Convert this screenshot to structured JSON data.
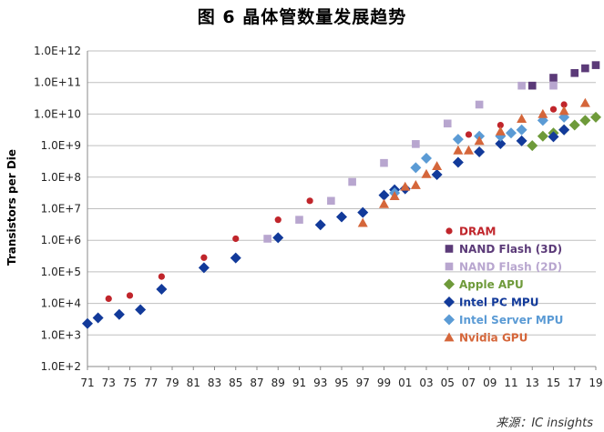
{
  "title": "图 6 晶体管数量发展趋势",
  "source": "来源：IC insights",
  "chart_data": {
    "type": "scatter",
    "ylabel": "Transistors per Die",
    "xlabel": "",
    "y_scale": "log",
    "y_ticks": [
      "1.0E+2",
      "1.0E+3",
      "1.0E+4",
      "1.0E+5",
      "1.0E+6",
      "1.0E+7",
      "1.0E+8",
      "1.0E+9",
      "1.0E+10",
      "1.0E+11",
      "1.0E+12"
    ],
    "x_ticks": [
      "71",
      "73",
      "75",
      "77",
      "79",
      "81",
      "83",
      "85",
      "87",
      "89",
      "91",
      "93",
      "95",
      "97",
      "99",
      "01",
      "03",
      "05",
      "07",
      "09",
      "11",
      "13",
      "15",
      "17",
      "19"
    ],
    "xlim": [
      1971,
      2019
    ],
    "ylim_exp": [
      2,
      12
    ],
    "grid": "horizontal",
    "legend_position": "bottom-right",
    "series": [
      {
        "name": "DRAM",
        "marker": "circle",
        "color": "#c0252b",
        "points": [
          [
            1973,
            4.15
          ],
          [
            1975,
            4.25
          ],
          [
            1978,
            4.85
          ],
          [
            1982,
            5.45
          ],
          [
            1985,
            6.05
          ],
          [
            1989,
            6.65
          ],
          [
            1992,
            7.25
          ],
          [
            1996,
            7.85
          ],
          [
            1999,
            8.45
          ],
          [
            2002,
            9.05
          ],
          [
            2007,
            9.35
          ],
          [
            2010,
            9.65
          ],
          [
            2014,
            9.95
          ],
          [
            2015,
            10.15
          ],
          [
            2016,
            10.3
          ]
        ]
      },
      {
        "name": "NAND Flash (3D)",
        "marker": "square",
        "color": "#5b3a78",
        "points": [
          [
            2013,
            10.9
          ],
          [
            2015,
            11.15
          ],
          [
            2017,
            11.3
          ],
          [
            2018,
            11.45
          ],
          [
            2019,
            11.55
          ]
        ]
      },
      {
        "name": "NAND Flash (2D)",
        "marker": "square",
        "color": "#b8a6cf",
        "points": [
          [
            1988,
            6.05
          ],
          [
            1991,
            6.65
          ],
          [
            1994,
            7.25
          ],
          [
            1996,
            7.85
          ],
          [
            1999,
            8.45
          ],
          [
            2002,
            9.05
          ],
          [
            2005,
            9.7
          ],
          [
            2008,
            10.3
          ],
          [
            2012,
            10.9
          ],
          [
            2015,
            10.9
          ]
        ]
      },
      {
        "name": "Apple APU",
        "marker": "diamond",
        "color": "#6e9a3a",
        "points": [
          [
            2013,
            9.0
          ],
          [
            2014,
            9.3
          ],
          [
            2015,
            9.4
          ],
          [
            2016,
            9.5
          ],
          [
            2017,
            9.65
          ],
          [
            2018,
            9.8
          ],
          [
            2019,
            9.9
          ]
        ]
      },
      {
        "name": "Intel PC MPU",
        "marker": "diamond",
        "color": "#123a9a",
        "points": [
          [
            1971,
            3.36
          ],
          [
            1972,
            3.54
          ],
          [
            1974,
            3.65
          ],
          [
            1976,
            3.8
          ],
          [
            1978,
            4.45
          ],
          [
            1982,
            5.13
          ],
          [
            1985,
            5.44
          ],
          [
            1989,
            6.08
          ],
          [
            1993,
            6.49
          ],
          [
            1995,
            6.74
          ],
          [
            1997,
            6.88
          ],
          [
            1999,
            7.43
          ],
          [
            2000,
            7.6
          ],
          [
            2001,
            7.63
          ],
          [
            2004,
            8.08
          ],
          [
            2006,
            8.47
          ],
          [
            2008,
            8.8
          ],
          [
            2010,
            9.06
          ],
          [
            2012,
            9.15
          ],
          [
            2015,
            9.28
          ],
          [
            2016,
            9.5
          ]
        ]
      },
      {
        "name": "Intel Server MPU",
        "marker": "diamond",
        "color": "#5b9bd5",
        "points": [
          [
            2000,
            7.5
          ],
          [
            2002,
            8.3
          ],
          [
            2003,
            8.6
          ],
          [
            2006,
            9.2
          ],
          [
            2008,
            9.3
          ],
          [
            2010,
            9.3
          ],
          [
            2011,
            9.4
          ],
          [
            2012,
            9.5
          ],
          [
            2014,
            9.8
          ],
          [
            2016,
            9.9
          ]
        ]
      },
      {
        "name": "Nvidia GPU",
        "marker": "triangle",
        "color": "#d5663a",
        "points": [
          [
            1997,
            6.55
          ],
          [
            1999,
            7.15
          ],
          [
            2000,
            7.4
          ],
          [
            2001,
            7.7
          ],
          [
            2002,
            7.75
          ],
          [
            2003,
            8.1
          ],
          [
            2004,
            8.35
          ],
          [
            2006,
            8.85
          ],
          [
            2007,
            8.85
          ],
          [
            2008,
            9.15
          ],
          [
            2010,
            9.45
          ],
          [
            2012,
            9.85
          ],
          [
            2014,
            10.0
          ],
          [
            2016,
            10.1
          ],
          [
            2018,
            10.35
          ]
        ]
      }
    ]
  }
}
